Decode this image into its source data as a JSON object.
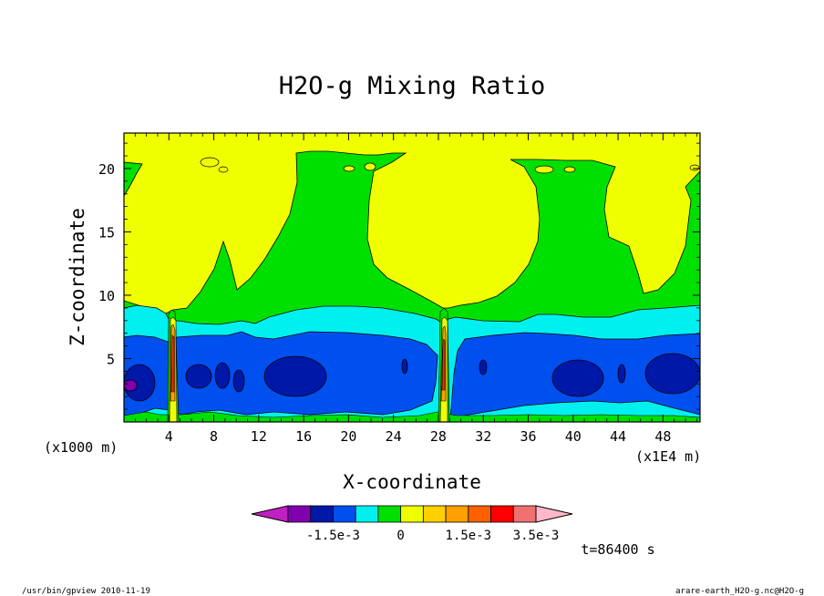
{
  "chart_data": {
    "type": "heatmap",
    "title": "H2O-g Mixing Ratio",
    "xlabel": "X-coordinate",
    "ylabel": "Z-coordinate",
    "x_unit_left": "(x1000 m)",
    "x_unit_right": "(x1E4 m)",
    "x_ticks": [
      "4",
      "8",
      "12",
      "16",
      "20",
      "24",
      "28",
      "32",
      "36",
      "40",
      "44",
      "48"
    ],
    "x_tick_values": [
      4,
      8,
      12,
      16,
      20,
      24,
      28,
      32,
      36,
      40,
      44,
      48
    ],
    "y_ticks": [
      "5",
      "10",
      "15",
      "20"
    ],
    "y_tick_values": [
      5,
      10,
      15,
      20
    ],
    "xlim": [
      0,
      51.3
    ],
    "ylim": [
      0,
      22.8
    ],
    "time_label": "t=86400 s",
    "colorbar": {
      "colors": [
        "#c020c0",
        "#8000b0",
        "#0018a8",
        "#0050f0",
        "#00f0f0",
        "#00e000",
        "#f0ff00",
        "#ffd000",
        "#ffa000",
        "#ff6000",
        "#ff0000",
        "#f07070",
        "#ffb8c8"
      ],
      "labels": [
        "-1.5e-3",
        "0",
        "1.5e-3",
        "3.5e-3"
      ]
    },
    "field_colors": {
      "yellow": "#f0ff00",
      "green": "#00e000",
      "cyan": "#00f0f0",
      "blue": "#0050f0",
      "darkblue": "#0018a8",
      "purple": "#8000b0",
      "orange": "#ffa000",
      "red": "#ff3000"
    }
  },
  "footer": {
    "left": "/usr/bin/gpview  2010-11-19",
    "right": "arare-earth_H2O-g.nc@H2O-g"
  }
}
